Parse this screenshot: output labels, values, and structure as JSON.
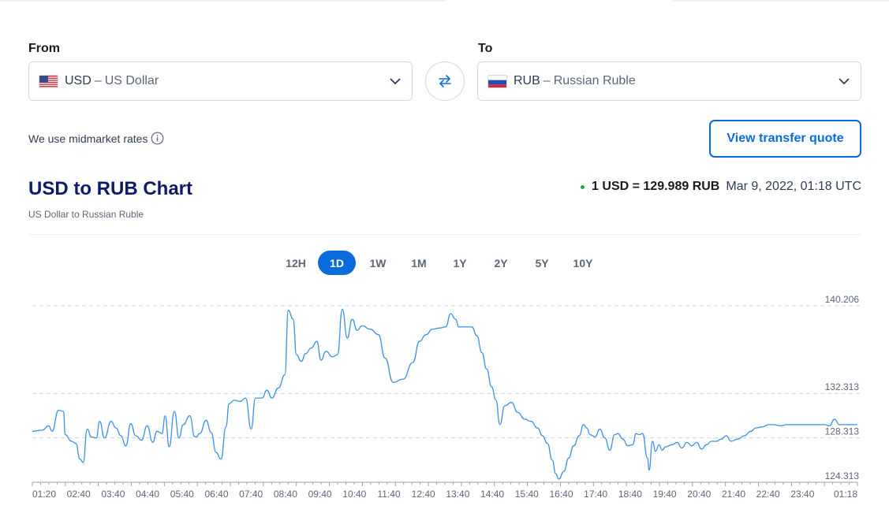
{
  "converter": {
    "from_label": "From",
    "to_label": "To",
    "from": {
      "code": "USD",
      "separator": "–",
      "name": "US Dollar",
      "flag_icon": "us-flag-icon"
    },
    "to": {
      "code": "RUB",
      "separator": "–",
      "name": "Russian Ruble",
      "flag_icon": "ru-flag-icon"
    },
    "swap_icon": "swap-arrows-icon"
  },
  "midmarket_text": "We use midmarket rates",
  "quote_button_label": "View transfer quote",
  "chart_header": {
    "title": "USD to RUB Chart",
    "subtitle": "US Dollar to Russian Ruble",
    "rate": "1 USD = 129.989 RUB",
    "timestamp": "Mar 9, 2022, 01:18 UTC",
    "live_color": "#22a94a"
  },
  "ranges": {
    "items": [
      "12H",
      "1D",
      "1W",
      "1M",
      "1Y",
      "2Y",
      "5Y",
      "10Y"
    ],
    "active": "1D"
  },
  "colors": {
    "accent": "#0a6cdc",
    "title": "#0e1b6b",
    "line": "#3d8fe6"
  },
  "chart_data": {
    "type": "line",
    "title": "",
    "xlabel": "",
    "ylabel": "",
    "series": [
      {
        "values": [
          [
            0.0,
            128.9
          ],
          [
            0.3,
            129.0
          ],
          [
            0.5,
            129.4
          ],
          [
            0.6,
            128.9
          ],
          [
            0.8,
            130.8
          ],
          [
            0.95,
            130.7
          ],
          [
            1.0,
            128.6
          ],
          [
            1.2,
            128.0
          ],
          [
            1.33,
            127.8
          ],
          [
            1.45,
            126.4
          ],
          [
            1.55,
            126.1
          ],
          [
            1.67,
            129.1
          ],
          [
            1.8,
            128.4
          ],
          [
            1.95,
            128.3
          ],
          [
            2.05,
            129.8
          ],
          [
            2.2,
            128.3
          ],
          [
            2.4,
            129.8
          ],
          [
            2.55,
            129.2
          ],
          [
            2.7,
            128.5
          ],
          [
            2.85,
            127.6
          ],
          [
            3.0,
            129.6
          ],
          [
            3.15,
            128.5
          ],
          [
            3.33,
            128.1
          ],
          [
            3.5,
            129.4
          ],
          [
            3.67,
            127.9
          ],
          [
            3.8,
            128.9
          ],
          [
            3.95,
            128.7
          ],
          [
            4.05,
            130.3
          ],
          [
            4.17,
            127.5
          ],
          [
            4.33,
            130.7
          ],
          [
            4.47,
            128.3
          ],
          [
            4.6,
            129.5
          ],
          [
            4.8,
            130.3
          ],
          [
            4.95,
            128.4
          ],
          [
            5.0,
            128.4
          ],
          [
            5.1,
            128.7
          ],
          [
            5.3,
            129.9
          ],
          [
            5.45,
            128.8
          ],
          [
            5.6,
            127.0
          ],
          [
            5.75,
            126.4
          ],
          [
            5.9,
            129.3
          ],
          [
            6.0,
            131.4
          ],
          [
            6.15,
            131.7
          ],
          [
            6.33,
            131.6
          ],
          [
            6.5,
            131.9
          ],
          [
            6.67,
            129.1
          ],
          [
            6.8,
            131.9
          ],
          [
            7.0,
            131.9
          ],
          [
            7.15,
            132.6
          ],
          [
            7.3,
            131.9
          ],
          [
            7.5,
            132.8
          ],
          [
            7.7,
            134.0
          ],
          [
            7.8,
            139.8
          ],
          [
            7.95,
            139.0
          ],
          [
            8.05,
            135.8
          ],
          [
            8.2,
            135.2
          ],
          [
            8.33,
            135.9
          ],
          [
            8.5,
            136.4
          ],
          [
            8.67,
            137.0
          ],
          [
            8.8,
            135.3
          ],
          [
            8.95,
            136.1
          ],
          [
            9.15,
            135.6
          ],
          [
            9.3,
            135.8
          ],
          [
            9.45,
            139.9
          ],
          [
            9.6,
            137.3
          ],
          [
            9.75,
            139.0
          ],
          [
            9.9,
            138.0
          ],
          [
            10.05,
            138.4
          ],
          [
            10.3,
            138.1
          ],
          [
            10.55,
            137.6
          ],
          [
            10.75,
            135.5
          ],
          [
            11.0,
            133.3
          ],
          [
            11.3,
            133.6
          ],
          [
            11.6,
            135.1
          ],
          [
            11.8,
            137.0
          ],
          [
            12.0,
            137.6
          ],
          [
            12.2,
            138.1
          ],
          [
            12.4,
            138.2
          ],
          [
            12.6,
            138.3
          ],
          [
            12.75,
            139.5
          ],
          [
            12.9,
            139.0
          ],
          [
            13.0,
            138.3
          ],
          [
            13.2,
            138.3
          ],
          [
            13.4,
            138.3
          ],
          [
            13.55,
            137.5
          ],
          [
            13.7,
            136.0
          ],
          [
            13.85,
            134.5
          ],
          [
            14.0,
            132.9
          ],
          [
            14.13,
            131.7
          ],
          [
            14.25,
            129.5
          ],
          [
            14.4,
            131.2
          ],
          [
            14.6,
            131.5
          ],
          [
            14.8,
            130.6
          ],
          [
            15.0,
            130.0
          ],
          [
            15.2,
            129.8
          ],
          [
            15.4,
            129.2
          ],
          [
            15.55,
            128.5
          ],
          [
            15.7,
            127.8
          ],
          [
            15.85,
            126.3
          ],
          [
            15.95,
            125.1
          ],
          [
            16.05,
            124.6
          ],
          [
            16.2,
            125.3
          ],
          [
            16.35,
            126.5
          ],
          [
            16.5,
            127.6
          ],
          [
            16.67,
            128.5
          ],
          [
            16.8,
            129.5
          ],
          [
            16.9,
            129.2
          ],
          [
            17.0,
            128.6
          ],
          [
            17.15,
            128.4
          ],
          [
            17.3,
            129.1
          ],
          [
            17.45,
            128.3
          ],
          [
            17.6,
            127.2
          ],
          [
            17.75,
            128.6
          ],
          [
            17.85,
            128.7
          ],
          [
            18.0,
            128.2
          ],
          [
            18.15,
            127.6
          ],
          [
            18.3,
            127.7
          ],
          [
            18.4,
            128.7
          ],
          [
            18.5,
            128.6
          ],
          [
            18.6,
            128.7
          ],
          [
            18.75,
            126.5
          ],
          [
            18.8,
            125.4
          ],
          [
            18.9,
            128.0
          ],
          [
            19.0,
            127.1
          ],
          [
            19.1,
            127.7
          ],
          [
            19.2,
            127.2
          ],
          [
            19.3,
            127.5
          ],
          [
            19.5,
            127.7
          ],
          [
            19.65,
            127.9
          ],
          [
            19.8,
            127.4
          ],
          [
            19.95,
            127.9
          ],
          [
            20.1,
            127.6
          ],
          [
            20.25,
            127.9
          ],
          [
            20.4,
            127.3
          ],
          [
            20.55,
            127.7
          ],
          [
            20.7,
            128.0
          ],
          [
            20.85,
            128.0
          ],
          [
            21.0,
            128.2
          ],
          [
            21.15,
            128.5
          ],
          [
            21.3,
            128.0
          ],
          [
            21.5,
            128.2
          ],
          [
            21.7,
            128.5
          ],
          [
            21.9,
            128.9
          ],
          [
            22.05,
            129.2
          ],
          [
            22.25,
            129.3
          ],
          [
            22.45,
            129.5
          ],
          [
            22.6,
            129.5
          ],
          [
            22.8,
            129.4
          ],
          [
            23.0,
            129.5
          ],
          [
            23.4,
            129.5
          ],
          [
            23.7,
            129.5
          ],
          [
            23.9,
            129.5
          ],
          [
            24.0,
            129.5
          ],
          [
            24.15,
            129.5
          ],
          [
            24.3,
            129.4
          ],
          [
            24.45,
            130.0
          ],
          [
            24.6,
            129.5
          ],
          [
            24.8,
            129.5
          ],
          [
            25.0,
            129.5
          ],
          [
            25.15,
            129.5
          ]
        ]
      }
    ],
    "x_tick_labels": [
      "01:20",
      "02:40",
      "03:40",
      "04:40",
      "05:40",
      "06:40",
      "07:40",
      "08:40",
      "09:40",
      "10:40",
      "11:40",
      "12:40",
      "13:40",
      "14:40",
      "15:40",
      "16:40",
      "17:40",
      "18:40",
      "19:40",
      "20:40",
      "21:40",
      "22:40",
      "23:40",
      "01:18"
    ],
    "y_tick_labels": [
      "140.206",
      "132.313",
      "128.313",
      "124.313"
    ],
    "ylim": [
      124.313,
      140.206
    ],
    "grid": true
  }
}
